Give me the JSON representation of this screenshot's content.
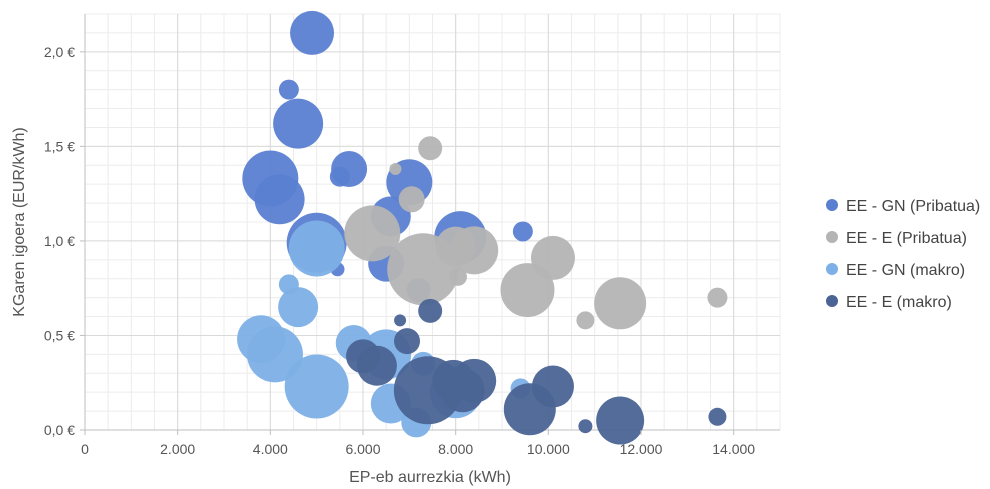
{
  "chart_data": {
    "type": "scatter",
    "bubble": true,
    "xlabel": "EP-eb aurrezkia (kWh)",
    "ylabel": "KGaren igoera (EUR/kWh)",
    "xlim": [
      0,
      15000
    ],
    "ylim": [
      0,
      2.2
    ],
    "x_ticks": [
      0,
      2000,
      4000,
      6000,
      8000,
      10000,
      12000,
      14000
    ],
    "x_tick_labels": [
      "0",
      "2.000",
      "4.000",
      "6.000",
      "8.000",
      "10.000",
      "12.000",
      "14.000"
    ],
    "y_ticks": [
      0,
      0.5,
      1.0,
      1.5,
      2.0
    ],
    "y_tick_labels": [
      "0,0 €",
      "0,5 €",
      "1,0 €",
      "1,5 €",
      "2,0 €"
    ],
    "grid": true,
    "legend_position": "right",
    "series": [
      {
        "name": "EE - GN (Pribatua)",
        "color": "#5a7fd1",
        "points": [
          {
            "x": 4900,
            "y": 2.1,
            "r": 22
          },
          {
            "x": 4400,
            "y": 1.8,
            "r": 10
          },
          {
            "x": 4600,
            "y": 1.62,
            "r": 25
          },
          {
            "x": 5700,
            "y": 1.38,
            "r": 18
          },
          {
            "x": 5500,
            "y": 1.34,
            "r": 10
          },
          {
            "x": 4000,
            "y": 1.33,
            "r": 28
          },
          {
            "x": 7000,
            "y": 1.31,
            "r": 23
          },
          {
            "x": 4200,
            "y": 1.22,
            "r": 25
          },
          {
            "x": 6600,
            "y": 1.13,
            "r": 20
          },
          {
            "x": 8100,
            "y": 1.02,
            "r": 26
          },
          {
            "x": 5000,
            "y": 0.99,
            "r": 30
          },
          {
            "x": 9450,
            "y": 1.05,
            "r": 10
          },
          {
            "x": 6500,
            "y": 0.88,
            "r": 18
          },
          {
            "x": 5450,
            "y": 0.85,
            "r": 7
          },
          {
            "x": 7200,
            "y": 0.74,
            "r": 12
          }
        ]
      },
      {
        "name": "EE - E (Pribatua)",
        "color": "#b4b4b4",
        "points": [
          {
            "x": 7450,
            "y": 1.49,
            "r": 12
          },
          {
            "x": 6700,
            "y": 1.38,
            "r": 6
          },
          {
            "x": 7050,
            "y": 1.22,
            "r": 13
          },
          {
            "x": 6200,
            "y": 1.04,
            "r": 28
          },
          {
            "x": 7300,
            "y": 0.85,
            "r": 36
          },
          {
            "x": 8000,
            "y": 0.97,
            "r": 20
          },
          {
            "x": 8400,
            "y": 0.95,
            "r": 24
          },
          {
            "x": 8050,
            "y": 0.81,
            "r": 9
          },
          {
            "x": 10100,
            "y": 0.91,
            "r": 22
          },
          {
            "x": 9550,
            "y": 0.74,
            "r": 27
          },
          {
            "x": 11550,
            "y": 0.67,
            "r": 26
          },
          {
            "x": 10800,
            "y": 0.58,
            "r": 9
          },
          {
            "x": 13650,
            "y": 0.7,
            "r": 10
          }
        ]
      },
      {
        "name": "EE - GN (makro)",
        "color": "#7db0e6",
        "points": [
          {
            "x": 4400,
            "y": 0.77,
            "r": 10
          },
          {
            "x": 4600,
            "y": 0.65,
            "r": 20
          },
          {
            "x": 5000,
            "y": 0.96,
            "r": 28
          },
          {
            "x": 3800,
            "y": 0.48,
            "r": 24
          },
          {
            "x": 4100,
            "y": 0.4,
            "r": 28
          },
          {
            "x": 5800,
            "y": 0.46,
            "r": 18
          },
          {
            "x": 6500,
            "y": 0.4,
            "r": 25
          },
          {
            "x": 6600,
            "y": 0.14,
            "r": 20
          },
          {
            "x": 7300,
            "y": 0.35,
            "r": 12
          },
          {
            "x": 7150,
            "y": 0.04,
            "r": 15
          },
          {
            "x": 5000,
            "y": 0.23,
            "r": 32
          },
          {
            "x": 8000,
            "y": 0.2,
            "r": 26
          },
          {
            "x": 9400,
            "y": 0.22,
            "r": 10
          }
        ]
      },
      {
        "name": "EE - E (makro)",
        "color": "#4a6494",
        "points": [
          {
            "x": 6800,
            "y": 0.58,
            "r": 6
          },
          {
            "x": 7450,
            "y": 0.63,
            "r": 12
          },
          {
            "x": 6950,
            "y": 0.47,
            "r": 13
          },
          {
            "x": 6000,
            "y": 0.39,
            "r": 17
          },
          {
            "x": 6300,
            "y": 0.34,
            "r": 20
          },
          {
            "x": 7400,
            "y": 0.21,
            "r": 34
          },
          {
            "x": 7950,
            "y": 0.26,
            "r": 21
          },
          {
            "x": 8150,
            "y": 0.21,
            "r": 22
          },
          {
            "x": 8400,
            "y": 0.26,
            "r": 22
          },
          {
            "x": 9600,
            "y": 0.11,
            "r": 26
          },
          {
            "x": 10100,
            "y": 0.23,
            "r": 21
          },
          {
            "x": 11550,
            "y": 0.05,
            "r": 24
          },
          {
            "x": 10800,
            "y": 0.02,
            "r": 7
          },
          {
            "x": 13650,
            "y": 0.07,
            "r": 9
          }
        ]
      }
    ]
  }
}
